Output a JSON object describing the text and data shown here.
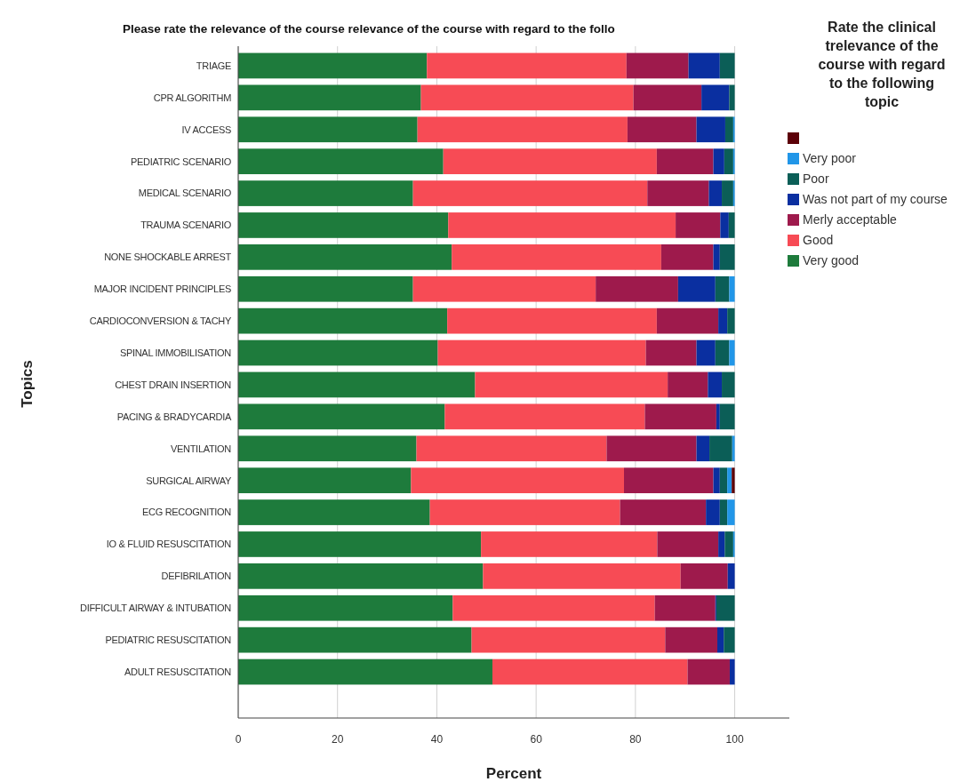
{
  "chart_data": {
    "type": "bar",
    "orientation": "horizontal",
    "stacked": true,
    "title": "Please rate the relevance of the course relevance of the course with regard to the follo",
    "xlabel": "Percent",
    "ylabel": "Topics",
    "legend_title": "Rate the clinical trelevance of the course with regard to the following topic",
    "categories": [
      "TRIAGE",
      "CPR ALGORITHM",
      "IV ACCESS",
      "PEDIATRIC SCENARIO",
      "MEDICAL SCENARIO",
      "TRAUMA SCENARIO",
      "NONE SHOCKABLE ARREST",
      "MAJOR INCIDENT PRINCIPLES",
      "CARDIOCONVERSION & TACHY",
      "SPINAL IMMOBILISATION",
      "CHEST DRAIN INSERTION",
      "PACING & BRADYCARDIA",
      "VENTILATION",
      "SURGICAL AIRWAY",
      "ECG RECOGNITION",
      "IO & FLUID RESUSCITATION",
      "DEFIBRILATION",
      "DIFFICULT AIRWAY & INTUBATION",
      "PEDIATRIC RESUSCITATION",
      "ADULT RESUSCITATION"
    ],
    "series": [
      {
        "name": "Very good",
        "color": "#1e7b3c",
        "values": [
          38,
          36.8,
          36.1,
          41.3,
          35.2,
          42.3,
          43,
          35.2,
          42.1,
          40.2,
          47.7,
          41.6,
          35.9,
          34.8,
          38.6,
          48.9,
          49.3,
          43.2,
          47,
          51.2
        ]
      },
      {
        "name": "Good",
        "color": "#f74b55",
        "values": [
          40.2,
          42.8,
          42.3,
          43,
          47.2,
          45.8,
          42.2,
          36.8,
          42.2,
          41.9,
          38.8,
          40.3,
          38.3,
          42.9,
          38.3,
          35.5,
          39.8,
          40.7,
          39,
          39.3
        ]
      },
      {
        "name": "Merly acceptable",
        "color": "#9e1a4c",
        "values": [
          12.5,
          13.7,
          13.9,
          11.4,
          12.4,
          9,
          10.5,
          16.6,
          12.4,
          10.2,
          8.1,
          14.4,
          18.1,
          18,
          17.3,
          12.3,
          9.5,
          12.2,
          10.5,
          8.5
        ]
      },
      {
        "name": "Was not part of my course",
        "color": "#0a2fa0",
        "values": [
          6.3,
          5.6,
          5.8,
          2.2,
          2.6,
          1.7,
          1.3,
          7.5,
          1.8,
          3.8,
          2.8,
          0.7,
          2.6,
          1.3,
          2.8,
          1.3,
          1.4,
          0.2,
          1.3,
          1
        ]
      },
      {
        "name": "Poor",
        "color": "#0b5e57",
        "values": [
          3,
          1.1,
          1.6,
          1.8,
          2.3,
          1.2,
          3,
          2.8,
          1.5,
          2.8,
          2.6,
          3,
          4.6,
          1.5,
          1.5,
          1.7,
          null,
          3.7,
          2.2,
          null
        ]
      },
      {
        "name": "Very poor",
        "color": "#2196e8",
        "values": [
          null,
          null,
          0.3,
          0.3,
          0.3,
          null,
          null,
          1.1,
          null,
          1.1,
          null,
          null,
          0.5,
          0.9,
          1.5,
          0.3,
          null,
          null,
          null,
          null
        ]
      },
      {
        "color": "#5c0008",
        "values": [
          null,
          null,
          null,
          null,
          null,
          null,
          null,
          null,
          null,
          null,
          null,
          null,
          null,
          0.6,
          null,
          null,
          null,
          null,
          null,
          null
        ]
      }
    ],
    "xlim": [
      0,
      111
    ],
    "xticks": [
      0,
      20,
      40,
      60,
      80,
      100
    ],
    "grid": "x",
    "legend": "top right"
  }
}
